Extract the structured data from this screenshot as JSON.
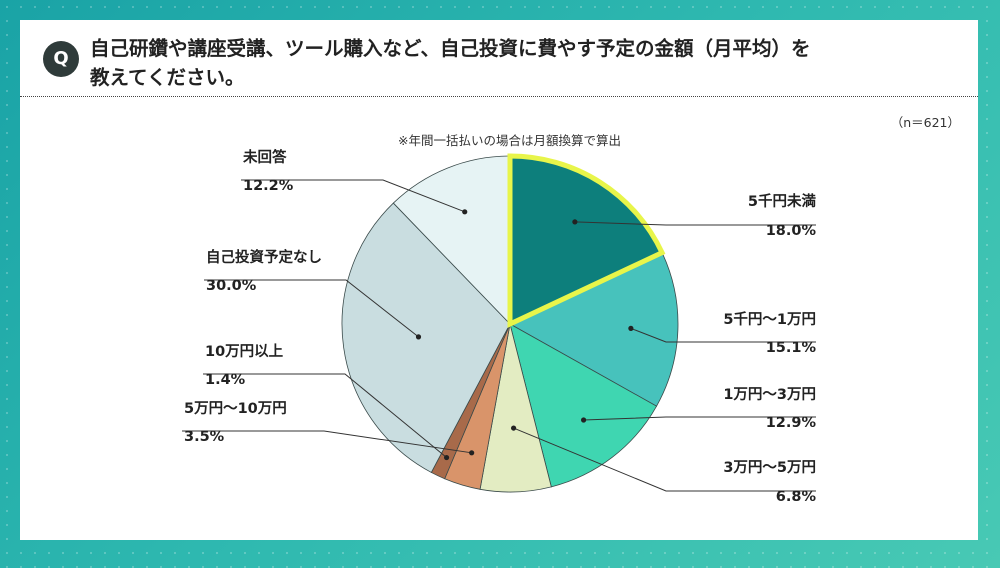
{
  "question": {
    "badge": "Q",
    "text": "自己研鑽や講座受講、ツール購入など、自己投資に費やす予定の金額（月平均）を\n教えてください。"
  },
  "sample_size": "（n＝621）",
  "note": "※年間一括払いの場合は月額換算で算出",
  "chart_data": {
    "type": "pie",
    "title": "",
    "start_angle_deg": 0,
    "direction": "clockwise",
    "highlight_index": 0,
    "highlight_color": "#e8f54a",
    "slices": [
      {
        "label": "5千円未満",
        "value": 18.0,
        "value_label": "18.0%",
        "color": "#0d7f7c"
      },
      {
        "label": "5千円〜1万円",
        "value": 15.1,
        "value_label": "15.1%",
        "color": "#47c2bc"
      },
      {
        "label": "1万円〜3万円",
        "value": 12.9,
        "value_label": "12.9%",
        "color": "#3fd6b1"
      },
      {
        "label": "3万円〜5万円",
        "value": 6.8,
        "value_label": "6.8%",
        "color": "#e3ecc2"
      },
      {
        "label": "5万円〜10万円",
        "value": 3.5,
        "value_label": "3.5%",
        "color": "#d9946a"
      },
      {
        "label": "10万円以上",
        "value": 1.4,
        "value_label": "1.4%",
        "color": "#a86a4a"
      },
      {
        "label": "自己投資予定なし",
        "value": 30.0,
        "value_label": "30.0%",
        "color": "#c9dde0"
      },
      {
        "label": "未回答",
        "value": 12.2,
        "value_label": "12.2%",
        "color": "#e6f3f4"
      }
    ]
  }
}
